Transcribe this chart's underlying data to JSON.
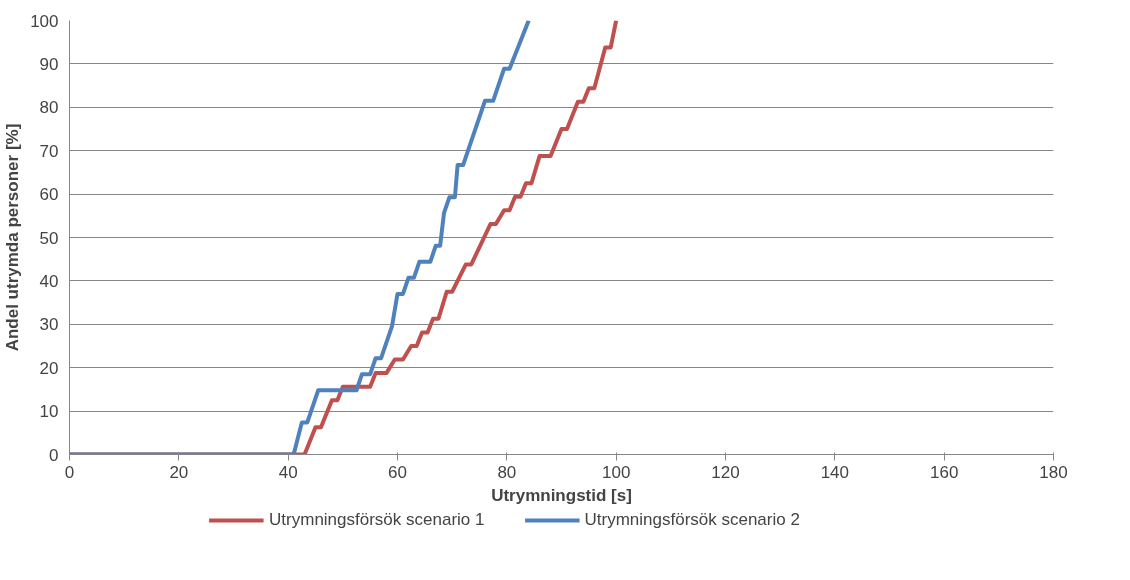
{
  "chart_data": {
    "type": "line",
    "xlabel": "Utrymningstid [s]",
    "ylabel": "Andel utrymda personer [%]",
    "xlim": [
      0,
      180
    ],
    "xticks": [
      0,
      20,
      40,
      60,
      80,
      100,
      120,
      140,
      160,
      180
    ],
    "ylim": [
      0,
      100
    ],
    "yticks": [
      0,
      10,
      20,
      30,
      40,
      50,
      60,
      70,
      80,
      90,
      100
    ],
    "grid": "y",
    "legend": "bottom",
    "marker": "none",
    "line_style": "solid",
    "series": [
      {
        "name": "Utrymningsförsök scenario 1",
        "color": "#c0504d",
        "x": [
          0,
          43,
          45,
          46,
          48,
          49,
          50,
          55,
          56,
          58,
          59.5,
          61,
          62.5,
          63.5,
          64.5,
          65.5,
          66.5,
          67.5,
          69,
          70,
          72.5,
          73.5,
          77,
          78,
          79.5,
          80.5,
          81.5,
          82.5,
          83.5,
          84.5,
          86,
          88,
          90,
          91,
          93,
          94,
          95,
          96,
          98,
          99,
          100
        ],
        "values": [
          0,
          0,
          6.3,
          6.3,
          12.5,
          12.5,
          15.6,
          15.6,
          18.8,
          18.8,
          21.9,
          21.9,
          25,
          25,
          28.1,
          28.1,
          31.3,
          31.3,
          37.5,
          37.5,
          43.8,
          43.8,
          53.1,
          53.1,
          56.3,
          56.3,
          59.4,
          59.4,
          62.5,
          62.5,
          68.8,
          68.8,
          75,
          75,
          81.3,
          81.3,
          84.4,
          84.4,
          93.8,
          93.8,
          100
        ]
      },
      {
        "name": "Utrymningsförsök scenario 2",
        "color": "#4f81bd",
        "x": [
          0,
          41,
          42.5,
          43.5,
          45.5,
          52.5,
          53.5,
          55,
          56,
          57,
          59,
          60,
          61,
          62,
          63,
          64,
          66,
          67,
          67.8,
          68.5,
          69.5,
          70.5,
          71,
          72,
          76,
          77.5,
          79.5,
          80.5,
          84
        ],
        "values": [
          0,
          0,
          7.4,
          7.4,
          14.8,
          14.8,
          18.5,
          18.5,
          22.2,
          22.2,
          29.6,
          37,
          37,
          40.7,
          40.7,
          44.4,
          44.4,
          48.1,
          48.1,
          55.6,
          59.3,
          59.3,
          66.7,
          66.7,
          81.5,
          81.5,
          88.9,
          88.9,
          100
        ]
      }
    ]
  }
}
